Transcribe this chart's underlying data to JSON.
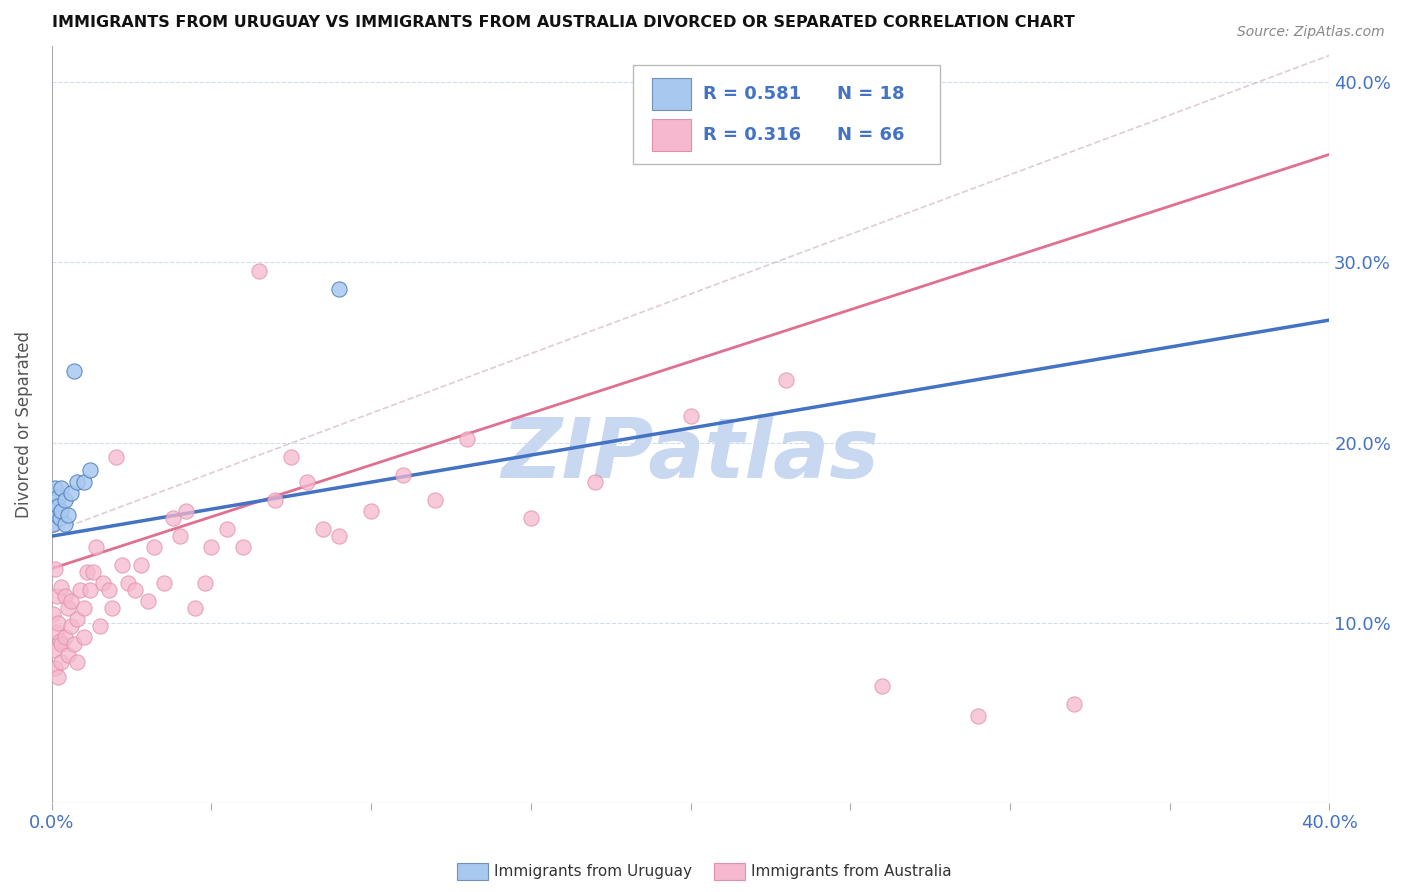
{
  "title": "IMMIGRANTS FROM URUGUAY VS IMMIGRANTS FROM AUSTRALIA DIVORCED OR SEPARATED CORRELATION CHART",
  "source_text": "Source: ZipAtlas.com",
  "ylabel": "Divorced or Separated",
  "xlim": [
    0.0,
    0.4
  ],
  "ylim": [
    0.0,
    0.42
  ],
  "ytick_positions": [
    0.1,
    0.2,
    0.3,
    0.4
  ],
  "ytick_labels": [
    "10.0%",
    "20.0%",
    "30.0%",
    "40.0%"
  ],
  "legend_r_uruguay": "R = 0.581",
  "legend_n_uruguay": "N = 18",
  "legend_r_australia": "R = 0.316",
  "legend_n_australia": "N = 66",
  "uruguay_color": "#A8C8F0",
  "australia_color": "#F5B8CE",
  "trend_uruguay_color": "#4472C4",
  "trend_australia_color": "#E07090",
  "dashed_line_color": "#D0A0B0",
  "grid_color": "#D0DCF0",
  "watermark_text": "ZIPatlas",
  "watermark_color": "#C8D8F0",
  "background_color": "#FFFFFF",
  "uruguay_points_x": [
    0.0005,
    0.001,
    0.001,
    0.0015,
    0.002,
    0.002,
    0.0025,
    0.003,
    0.003,
    0.004,
    0.004,
    0.005,
    0.006,
    0.007,
    0.008,
    0.01,
    0.012,
    0.09
  ],
  "uruguay_points_y": [
    0.155,
    0.165,
    0.175,
    0.16,
    0.17,
    0.165,
    0.158,
    0.162,
    0.175,
    0.155,
    0.168,
    0.16,
    0.172,
    0.24,
    0.178,
    0.178,
    0.185,
    0.285
  ],
  "australia_points_x": [
    0.0003,
    0.0005,
    0.0008,
    0.001,
    0.001,
    0.0012,
    0.0015,
    0.002,
    0.002,
    0.0025,
    0.003,
    0.003,
    0.003,
    0.004,
    0.004,
    0.005,
    0.005,
    0.006,
    0.006,
    0.007,
    0.008,
    0.008,
    0.009,
    0.01,
    0.01,
    0.011,
    0.012,
    0.013,
    0.014,
    0.015,
    0.016,
    0.018,
    0.019,
    0.02,
    0.022,
    0.024,
    0.026,
    0.028,
    0.03,
    0.032,
    0.035,
    0.038,
    0.04,
    0.042,
    0.045,
    0.048,
    0.05,
    0.055,
    0.06,
    0.065,
    0.07,
    0.075,
    0.08,
    0.085,
    0.09,
    0.1,
    0.11,
    0.12,
    0.13,
    0.15,
    0.17,
    0.2,
    0.23,
    0.26,
    0.29,
    0.32
  ],
  "australia_points_y": [
    0.155,
    0.105,
    0.085,
    0.13,
    0.075,
    0.095,
    0.115,
    0.1,
    0.07,
    0.09,
    0.12,
    0.088,
    0.078,
    0.115,
    0.092,
    0.108,
    0.082,
    0.098,
    0.112,
    0.088,
    0.102,
    0.078,
    0.118,
    0.108,
    0.092,
    0.128,
    0.118,
    0.128,
    0.142,
    0.098,
    0.122,
    0.118,
    0.108,
    0.192,
    0.132,
    0.122,
    0.118,
    0.132,
    0.112,
    0.142,
    0.122,
    0.158,
    0.148,
    0.162,
    0.108,
    0.122,
    0.142,
    0.152,
    0.142,
    0.295,
    0.168,
    0.192,
    0.178,
    0.152,
    0.148,
    0.162,
    0.182,
    0.168,
    0.202,
    0.158,
    0.178,
    0.215,
    0.235,
    0.065,
    0.048,
    0.055
  ],
  "uruguay_trend_x": [
    0.0,
    0.4
  ],
  "uruguay_trend_y": [
    0.148,
    0.268
  ],
  "australia_trend_x": [
    0.0,
    0.4
  ],
  "australia_trend_y": [
    0.13,
    0.36
  ],
  "dashed_trend_x": [
    0.0,
    0.4
  ],
  "dashed_trend_y": [
    0.15,
    0.415
  ]
}
